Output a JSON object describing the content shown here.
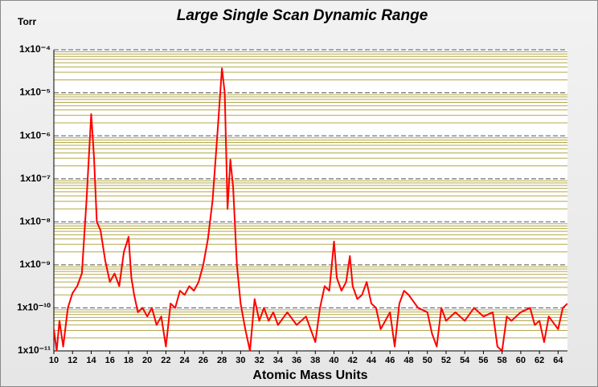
{
  "chart_data": {
    "type": "line",
    "title": "Large Single Scan Dynamic Range",
    "y_label": "Torr",
    "x_label": "Atomic Mass Units",
    "log_y": true,
    "grid": true,
    "minor_grid": true,
    "xlim": [
      10,
      65
    ],
    "ylim": [
      1e-11,
      0.0001
    ],
    "xticks": [
      10,
      12,
      14,
      16,
      18,
      20,
      22,
      24,
      26,
      28,
      30,
      32,
      34,
      36,
      38,
      40,
      42,
      44,
      46,
      48,
      50,
      52,
      54,
      56,
      58,
      60,
      62,
      64
    ],
    "yticks": [
      {
        "value": 0.0001,
        "label": "1x10⁻⁴"
      },
      {
        "value": 1e-05,
        "label": "1x10⁻⁵"
      },
      {
        "value": 1e-06,
        "label": "1x10⁻⁶"
      },
      {
        "value": 1e-07,
        "label": "1x10⁻⁷"
      },
      {
        "value": 1e-08,
        "label": "1x10⁻⁸"
      },
      {
        "value": 1e-09,
        "label": "1x10⁻⁹"
      },
      {
        "value": 1e-10,
        "label": "1x10⁻¹⁰"
      },
      {
        "value": 1e-11,
        "label": "1x10⁻¹¹"
      }
    ],
    "x": [
      10,
      10.3,
      10.6,
      11,
      11.5,
      12,
      12.5,
      13,
      13.5,
      14,
      14.3,
      14.6,
      15,
      15.5,
      16,
      16.5,
      17,
      17.5,
      17.8,
      18,
      18.3,
      18.6,
      19,
      19.5,
      20,
      20.5,
      21,
      21.5,
      22,
      22.5,
      23,
      23.5,
      24,
      24.5,
      25,
      25.5,
      26,
      26.5,
      27,
      27.5,
      28,
      28.3,
      28.6,
      28.9,
      29.2,
      29.6,
      30,
      30.5,
      31,
      31.5,
      32,
      32.5,
      33,
      33.5,
      34,
      35,
      36,
      37,
      38,
      38.5,
      39,
      39.5,
      40,
      40.3,
      40.8,
      41.3,
      41.7,
      42,
      42.5,
      43,
      43.5,
      44,
      44.5,
      45,
      46,
      46.5,
      47,
      47.5,
      48,
      49,
      50,
      50.5,
      51,
      51.5,
      52,
      53,
      54,
      55,
      56,
      57,
      57.5,
      58,
      58.5,
      59,
      60,
      61,
      61.5,
      62,
      62.5,
      63,
      64,
      64.5,
      65
    ],
    "series": [
      {
        "color": "#ff0000",
        "values": [
          3.2e-11,
          1e-11,
          5e-11,
          1.26e-11,
          1e-10,
          2.2e-10,
          3.2e-10,
          6.3e-10,
          3.2e-08,
          3.2e-06,
          3.2e-07,
          1e-08,
          6.3e-09,
          1.26e-09,
          4e-10,
          6.3e-10,
          3.2e-10,
          2e-09,
          3.2e-09,
          4.5e-09,
          5e-10,
          2e-10,
          7.9e-11,
          1e-10,
          6.3e-11,
          1e-10,
          4e-11,
          6.3e-11,
          1.26e-11,
          1.26e-10,
          1e-10,
          2.5e-10,
          2e-10,
          3.2e-10,
          2.5e-10,
          4e-10,
          1e-09,
          4e-09,
          3.2e-08,
          1e-06,
          3.7e-05,
          1e-05,
          2e-08,
          2.8e-07,
          6.3e-08,
          1e-09,
          1.26e-10,
          3.2e-11,
          1e-11,
          1.6e-10,
          5e-11,
          1e-10,
          5e-11,
          7.9e-11,
          4e-11,
          7.9e-11,
          4e-11,
          6.3e-11,
          1.6e-11,
          1e-10,
          3.2e-10,
          2.5e-10,
          3.5e-09,
          5e-10,
          2.5e-10,
          4e-10,
          1.6e-09,
          3.2e-10,
          1.6e-10,
          2e-10,
          4e-10,
          1.26e-10,
          1e-10,
          3.2e-11,
          7.9e-11,
          1.26e-11,
          1.26e-10,
          2.5e-10,
          2e-10,
          1e-10,
          7.9e-11,
          2.5e-11,
          1.26e-11,
          1e-10,
          5e-11,
          7.9e-11,
          5e-11,
          1e-10,
          6.3e-11,
          7.9e-11,
          1.26e-11,
          1e-11,
          6.3e-11,
          5e-11,
          7.9e-11,
          1e-10,
          4e-11,
          5e-11,
          1.6e-11,
          6.3e-11,
          3.2e-11,
          1e-10,
          1.26e-10
        ]
      }
    ]
  }
}
